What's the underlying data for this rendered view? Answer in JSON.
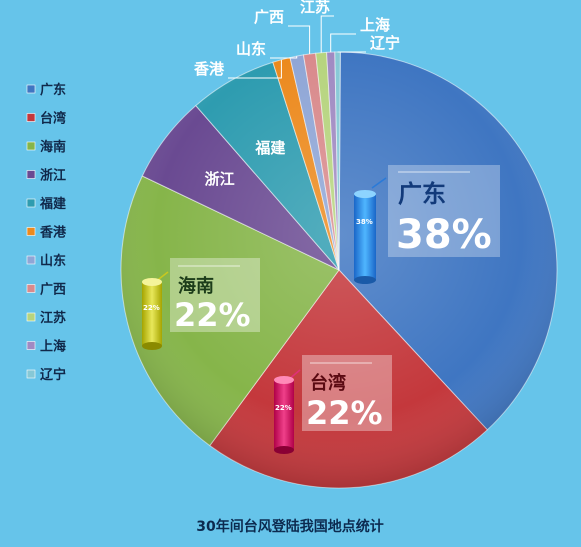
{
  "chart_data": {
    "type": "pie",
    "title": "30年间台风登陆我国地点统计",
    "slices": [
      {
        "label": "广东",
        "value": 38,
        "color": "#3f76c2"
      },
      {
        "label": "台湾",
        "value": 22,
        "color": "#c4383c"
      },
      {
        "label": "海南",
        "value": 22,
        "color": "#86b54a"
      },
      {
        "label": "浙江",
        "value": 6.5,
        "color": "#6a4a92"
      },
      {
        "label": "福建",
        "value": 6.5,
        "color": "#2e9cb0"
      },
      {
        "label": "香港",
        "value": 1.3,
        "color": "#ec8a1e"
      },
      {
        "label": "山东",
        "value": 1.0,
        "color": "#8fa6d6"
      },
      {
        "label": "广西",
        "value": 0.9,
        "color": "#d98a8c"
      },
      {
        "label": "江苏",
        "value": 0.8,
        "color": "#b6d47e"
      },
      {
        "label": "上海",
        "value": 0.6,
        "color": "#a08ac2"
      },
      {
        "label": "辽宁",
        "value": 0.4,
        "color": "#86c8d6"
      }
    ],
    "legend": {
      "position": "left"
    },
    "callouts": [
      {
        "label": "广东",
        "pct": "38%",
        "cyl": "38%"
      },
      {
        "label": "海南",
        "pct": "22%",
        "cyl": "22%"
      },
      {
        "label": "台湾",
        "pct": "22%",
        "cyl": "22%"
      }
    ]
  }
}
